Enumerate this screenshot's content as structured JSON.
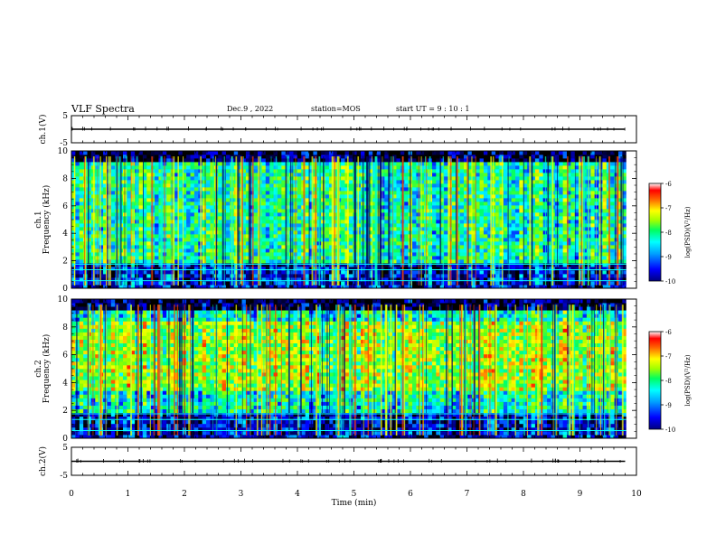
{
  "header": {
    "title": "VLF Spectra",
    "date": "Dec.9 , 2022",
    "station": "station=MOS",
    "start": "start UT = 9 : 10 : 1"
  },
  "colors": {
    "colormap": [
      "#000000",
      "#0000a0",
      "#0000ff",
      "#0080ff",
      "#00ffff",
      "#00ff80",
      "#80ff00",
      "#ffff00",
      "#ff8000",
      "#ff0000",
      "#ff8080",
      "#ffffff"
    ]
  },
  "chart_data": [
    {
      "type": "line",
      "ylabel": "ch.1(V)",
      "ylim": [
        -5,
        5
      ],
      "yticks": [
        "5",
        "-5"
      ],
      "x": [
        0,
        9.8
      ],
      "values": [
        0,
        0
      ]
    },
    {
      "type": "heatmap",
      "ylabel": "ch.1\nFrequency (kHz)",
      "ylim": [
        0,
        10
      ],
      "yticks": [
        "0",
        "2",
        "4",
        "6",
        "8",
        "10"
      ],
      "colorbar": {
        "label": "log(PSD)(V²/Hz)",
        "range": [
          -10,
          -6
        ],
        "ticks": [
          "-6",
          "-7",
          "-8",
          "-9",
          "-10"
        ]
      }
    },
    {
      "type": "heatmap",
      "ylabel": "ch.2\nFrequency (kHz)",
      "ylim": [
        0,
        10
      ],
      "yticks": [
        "0",
        "2",
        "4",
        "6",
        "8",
        "10"
      ],
      "colorbar": {
        "label": "log(PSD)(V²/Hz)",
        "range": [
          -10,
          -6
        ],
        "ticks": [
          "-6",
          "-7",
          "-8",
          "-9",
          "-10"
        ]
      }
    },
    {
      "type": "line",
      "ylabel": "ch.2(V)",
      "ylim": [
        -5,
        5
      ],
      "yticks": [
        "5",
        "-5"
      ],
      "x": [
        0,
        9.8
      ],
      "values": [
        0,
        0
      ]
    }
  ],
  "xaxis": {
    "label": "Time (min)",
    "xlim": [
      0,
      10
    ],
    "ticks": [
      "0",
      "1",
      "2",
      "3",
      "4",
      "5",
      "6",
      "7",
      "8",
      "9",
      "10"
    ]
  }
}
